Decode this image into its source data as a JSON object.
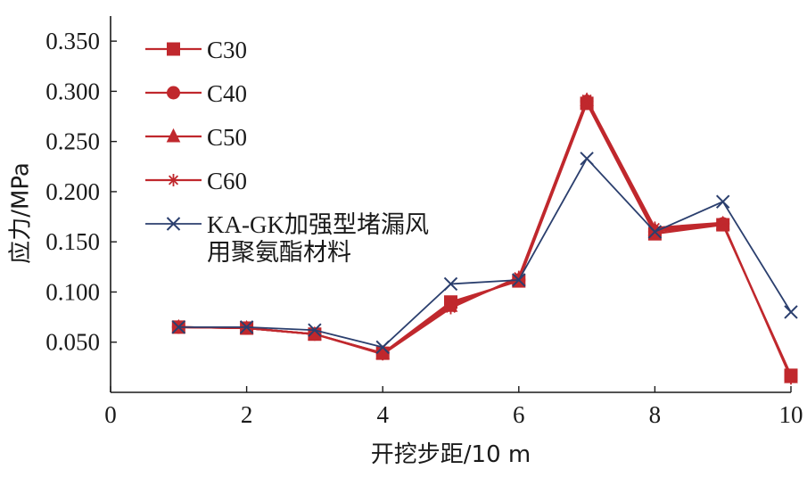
{
  "chart_data": {
    "type": "line",
    "xlabel": "开挖步距/10 m",
    "ylabel": "应力/MPa",
    "xlim": [
      0,
      10
    ],
    "ylim": [
      0,
      0.375
    ],
    "x_ticks": [
      "0",
      "2",
      "4",
      "6",
      "8",
      "10"
    ],
    "y_ticks": [
      "0.050",
      "0.100",
      "0.150",
      "0.200",
      "0.250",
      "0.300",
      "0.350"
    ],
    "grid": false,
    "legend_position": "top-left",
    "x": [
      1,
      2,
      3,
      4,
      5,
      6,
      7,
      8,
      9,
      10
    ],
    "series": [
      {
        "name": "C30",
        "marker": "square",
        "color": "#c0282d",
        "values": [
          0.065,
          0.064,
          0.058,
          0.039,
          0.09,
          0.111,
          0.288,
          0.158,
          0.167,
          0.017
        ]
      },
      {
        "name": "C40",
        "marker": "circle",
        "color": "#c0282d",
        "values": [
          0.065,
          0.064,
          0.058,
          0.039,
          0.088,
          0.112,
          0.29,
          0.16,
          0.168,
          0.016
        ]
      },
      {
        "name": "C50",
        "marker": "triangle",
        "color": "#c0282d",
        "values": [
          0.065,
          0.064,
          0.058,
          0.039,
          0.086,
          0.113,
          0.291,
          0.162,
          0.168,
          0.015
        ]
      },
      {
        "name": "C60",
        "marker": "star",
        "color": "#c0282d",
        "values": [
          0.065,
          0.064,
          0.058,
          0.038,
          0.084,
          0.115,
          0.292,
          0.164,
          0.169,
          0.014
        ]
      },
      {
        "name": "KA-GK加强型堵漏风用聚氨酯材料",
        "marker": "x",
        "color": "#2b3f6e",
        "values": [
          0.065,
          0.065,
          0.062,
          0.045,
          0.108,
          0.112,
          0.233,
          0.16,
          0.19,
          0.08
        ]
      }
    ],
    "legend_lines": [
      [
        "C30"
      ],
      [
        "C40"
      ],
      [
        "C50"
      ],
      [
        "C60"
      ],
      [
        "KA-GK加强型堵漏风",
        "用聚氨酯材料"
      ]
    ]
  }
}
